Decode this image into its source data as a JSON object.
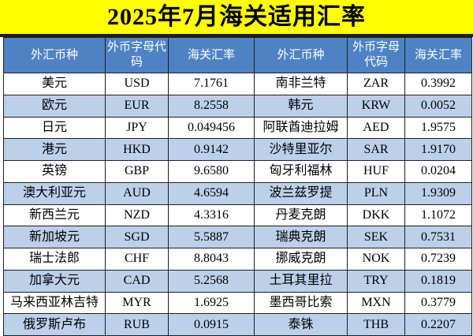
{
  "title": "2025年7月海关适用汇率",
  "table": {
    "headers": [
      "外汇币种",
      "外币字母代码",
      "海关汇率",
      "外汇币种",
      "外币字母代码",
      "海关汇率"
    ],
    "rows": [
      [
        "美元",
        "USD",
        "7.1761",
        "南非兰特",
        "ZAR",
        "0.3992"
      ],
      [
        "欧元",
        "EUR",
        "8.2558",
        "韩元",
        "KRW",
        "0.0052"
      ],
      [
        "日元",
        "JPY",
        "0.049456",
        "阿联酋迪拉姆",
        "AED",
        "1.9575"
      ],
      [
        "港元",
        "HKD",
        "0.9142",
        "沙特里亚尔",
        "SAR",
        "1.9170"
      ],
      [
        "英镑",
        "GBP",
        "9.6580",
        "匈牙利福林",
        "HUF",
        "0.0204"
      ],
      [
        "澳大利亚元",
        "AUD",
        "4.6594",
        "波兰兹罗提",
        "PLN",
        "1.9309"
      ],
      [
        "新西兰元",
        "NZD",
        "4.3316",
        "丹麦克朗",
        "DKK",
        "1.1072"
      ],
      [
        "新加坡元",
        "SGD",
        "5.5887",
        "瑞典克朗",
        "SEK",
        "0.7531"
      ],
      [
        "瑞士法郎",
        "CHF",
        "8.8043",
        "挪威克朗",
        "NOK",
        "0.7239"
      ],
      [
        "加拿大元",
        "CAD",
        "5.2568",
        "土耳其里拉",
        "TRY",
        "0.1819"
      ],
      [
        "马来西亚林吉特",
        "MYR",
        "1.6925",
        "墨西哥比索",
        "MXN",
        "0.3779"
      ],
      [
        "俄罗斯卢布",
        "RUB",
        "0.0915",
        "泰铢",
        "THB",
        "0.2207"
      ]
    ]
  },
  "colors": {
    "title_background": "#ffff00",
    "header_background": "#4e82c4",
    "header_text": "#ffffff",
    "row_alt_background": "#bcd0ea",
    "row_background": "#ffffff",
    "border": "#1f1f1f",
    "body_text": "#000000"
  }
}
